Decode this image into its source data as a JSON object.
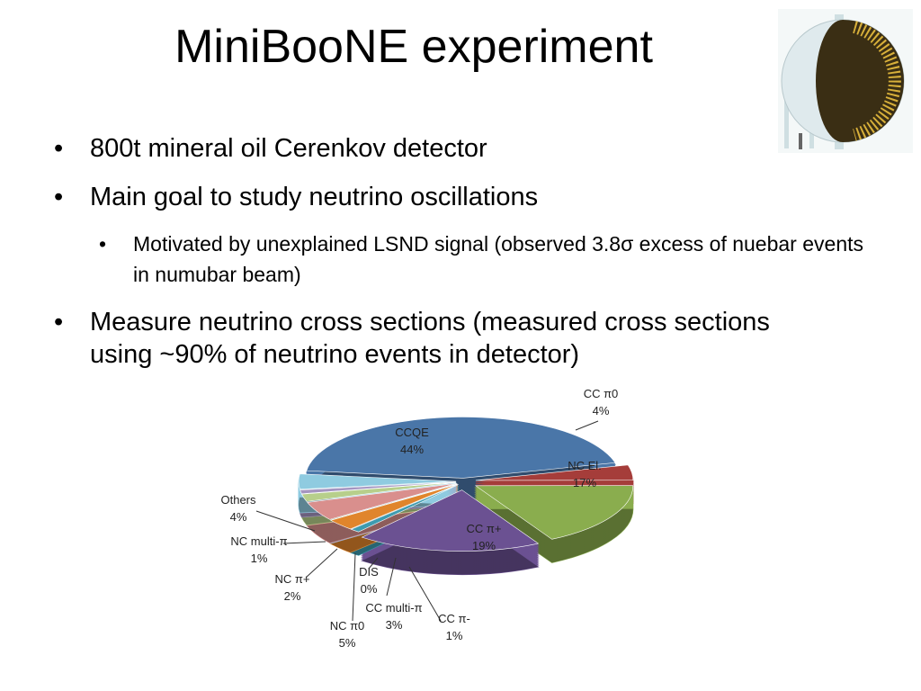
{
  "title": "MiniBooNE experiment",
  "bullets": [
    {
      "text": "800t mineral oil Cerenkov detector"
    },
    {
      "text": "Main goal to study neutrino oscillations",
      "sub": [
        "Motivated by unexplained LSND signal (observed 3.8σ excess of nuebar events in numubar beam)"
      ]
    },
    {
      "text": "Measure neutrino cross sections (measured cross sections using ~90%  of neutrino events in detector)"
    }
  ],
  "chart_data": {
    "type": "pie",
    "categories": [
      "CCQE",
      "CC π0",
      "NC El.",
      "CC π+",
      "CC π-",
      "CC multi-π",
      "DIS",
      "NC π0",
      "NC π+",
      "NC multi-π",
      "Others"
    ],
    "values": [
      44,
      4,
      17,
      19,
      1,
      3,
      0,
      5,
      2,
      1,
      4
    ],
    "value_labels": [
      "44%",
      "4%",
      "17%",
      "19%",
      "1%",
      "3%",
      "0%",
      "5%",
      "2%",
      "1%",
      "4%"
    ],
    "colors": [
      "#4a76a8",
      "#a53d3a",
      "#8aad4e",
      "#6b5192",
      "#3d9bb0",
      "#e0852c",
      "#9bb2d6",
      "#d98f8d",
      "#b7cf8b",
      "#a595c0",
      "#8fcbe0"
    ]
  }
}
